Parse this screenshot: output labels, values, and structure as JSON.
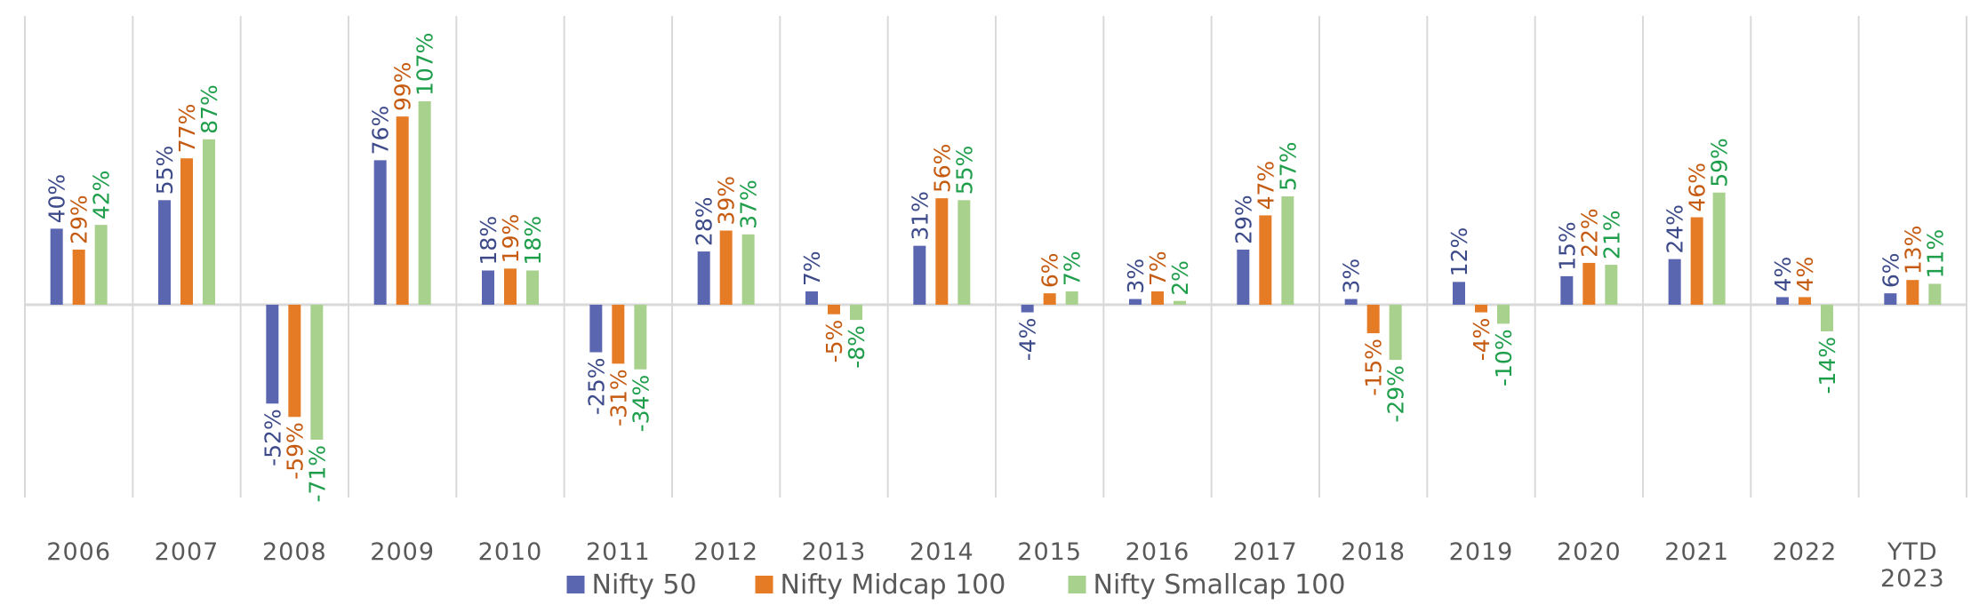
{
  "chart_data": {
    "type": "bar",
    "categories": [
      "2006",
      "2007",
      "2008",
      "2009",
      "2010",
      "2011",
      "2012",
      "2013",
      "2014",
      "2015",
      "2016",
      "2017",
      "2018",
      "2019",
      "2020",
      "2021",
      "2022",
      "YTD 2023"
    ],
    "series": [
      {
        "name": "Nifty 50",
        "color": "#5B66B0",
        "label_color": "#3D4A8A",
        "values": [
          40,
          55,
          -52,
          76,
          18,
          -25,
          28,
          7,
          31,
          -4,
          3,
          29,
          3,
          12,
          15,
          24,
          4,
          6
        ],
        "labels": [
          "40%",
          "55%",
          "-52%",
          "76%",
          "18%",
          "-25%",
          "28%",
          "7%",
          "31%",
          "-4%",
          "3%",
          "29%",
          "3%",
          "12%",
          "15%",
          "24%",
          "4%",
          "6%"
        ]
      },
      {
        "name": "Nifty Midcap 100",
        "color": "#E57B25",
        "label_color": "#C55A11",
        "values": [
          29,
          77,
          -59,
          99,
          19,
          -31,
          39,
          -5,
          56,
          6,
          7,
          47,
          -15,
          -4,
          22,
          46,
          4,
          13
        ],
        "labels": [
          "29%",
          "77%",
          "-59%",
          "99%",
          "19%",
          "-31%",
          "39%",
          "-5%",
          "56%",
          "6%",
          "7%",
          "47%",
          "-15%",
          "-4%",
          "22%",
          "46%",
          "4%",
          "13%"
        ]
      },
      {
        "name": "Nifty Smallcap 100",
        "color": "#A9D18E",
        "label_color": "#1E9E4A",
        "values": [
          42,
          87,
          -71,
          107,
          18,
          -34,
          37,
          -8,
          55,
          7,
          2,
          57,
          -29,
          -10,
          21,
          59,
          -14,
          11
        ],
        "labels": [
          "42%",
          "87%",
          "-71%",
          "107%",
          "18%",
          "-34%",
          "37%",
          "-8%",
          "55%",
          "7%",
          "2%",
          "57%",
          "-29%",
          "-10%",
          "21%",
          "59%",
          "-14%",
          "11%"
        ]
      }
    ],
    "ylim": [
      -82,
      120
    ],
    "grid": true,
    "legend_position": "bottom"
  }
}
